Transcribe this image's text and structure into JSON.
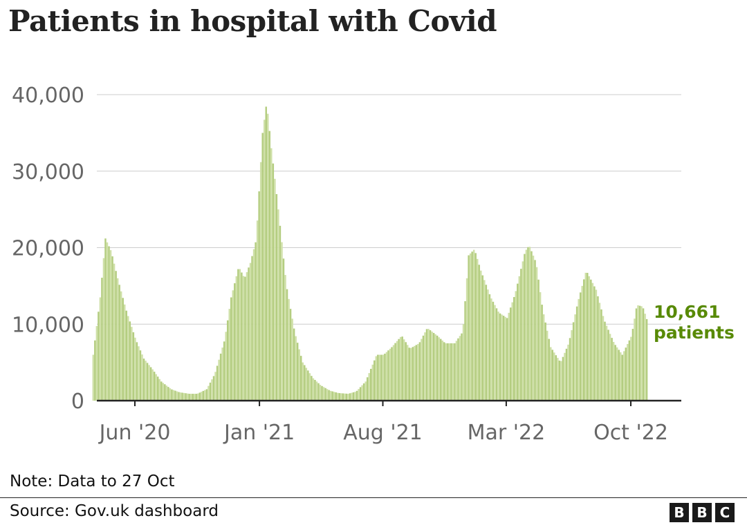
{
  "title": "Patients in hospital with Covid",
  "note": "Note: Data to 27 Oct",
  "source": "Source: Gov.uk dashboard",
  "logo": [
    "B",
    "B",
    "C"
  ],
  "colors": {
    "bar": "#cfe0a8",
    "bar_stripe": "#b4cd80",
    "annotation": "#588a06",
    "axis": "#222222",
    "grid": "#cccccc",
    "tick_text": "#666666"
  },
  "chart_data": {
    "type": "bar",
    "title": "Patients in hospital with Covid",
    "xlabel": "",
    "ylabel": "",
    "ylim": [
      0,
      40000
    ],
    "yticks": [
      0,
      10000,
      20000,
      30000,
      40000
    ],
    "ytick_labels": [
      "0",
      "10,000",
      "20,000",
      "30,000",
      "40,000"
    ],
    "xtick_labels": [
      "Jun '20",
      "Jan '21",
      "Aug '21",
      "Mar '22",
      "Oct '22"
    ],
    "xtick_dates": [
      "2020-06-01",
      "2021-01-01",
      "2021-08-01",
      "2022-03-01",
      "2022-10-01"
    ],
    "grid": true,
    "x": [
      "2020-03-20",
      "2020-04-01",
      "2020-04-10",
      "2020-04-20",
      "2020-05-01",
      "2020-05-15",
      "2020-06-01",
      "2020-06-15",
      "2020-07-01",
      "2020-07-15",
      "2020-08-01",
      "2020-08-15",
      "2020-09-01",
      "2020-09-15",
      "2020-10-01",
      "2020-10-15",
      "2020-11-01",
      "2020-11-12",
      "2020-11-25",
      "2020-12-05",
      "2020-12-15",
      "2020-12-25",
      "2021-01-05",
      "2021-01-12",
      "2021-01-20",
      "2021-02-01",
      "2021-02-15",
      "2021-03-01",
      "2021-03-15",
      "2021-04-01",
      "2021-04-15",
      "2021-05-01",
      "2021-05-15",
      "2021-06-01",
      "2021-06-15",
      "2021-07-01",
      "2021-07-20",
      "2021-08-01",
      "2021-08-15",
      "2021-09-01",
      "2021-09-15",
      "2021-10-01",
      "2021-10-15",
      "2021-11-01",
      "2021-11-15",
      "2021-12-01",
      "2021-12-15",
      "2021-12-25",
      "2022-01-04",
      "2022-01-15",
      "2022-02-01",
      "2022-02-15",
      "2022-03-01",
      "2022-03-15",
      "2022-04-01",
      "2022-04-08",
      "2022-04-20",
      "2022-05-01",
      "2022-05-15",
      "2022-06-01",
      "2022-06-15",
      "2022-07-01",
      "2022-07-15",
      "2022-08-01",
      "2022-08-15",
      "2022-09-01",
      "2022-09-15",
      "2022-10-01",
      "2022-10-10",
      "2022-10-20",
      "2022-10-27"
    ],
    "values": [
      6000,
      13500,
      21200,
      19500,
      16000,
      12000,
      8000,
      5500,
      4000,
      2500,
      1500,
      1100,
      900,
      900,
      1500,
      3500,
      8000,
      13500,
      17500,
      16000,
      18000,
      21000,
      35000,
      39000,
      33000,
      25000,
      15000,
      9000,
      5000,
      3000,
      2000,
      1300,
      1000,
      900,
      1200,
      2500,
      6000,
      6000,
      7000,
      8500,
      6800,
      7500,
      9500,
      8500,
      7500,
      7500,
      9000,
      19000,
      19800,
      17000,
      13500,
      11500,
      10800,
      14000,
      19500,
      20300,
      18000,
      12000,
      7000,
      5000,
      7500,
      13000,
      17000,
      14500,
      10500,
      7500,
      6000,
      8500,
      12500,
      12300,
      10661
    ],
    "annotation": {
      "value": "10,661",
      "label": "patients"
    }
  }
}
